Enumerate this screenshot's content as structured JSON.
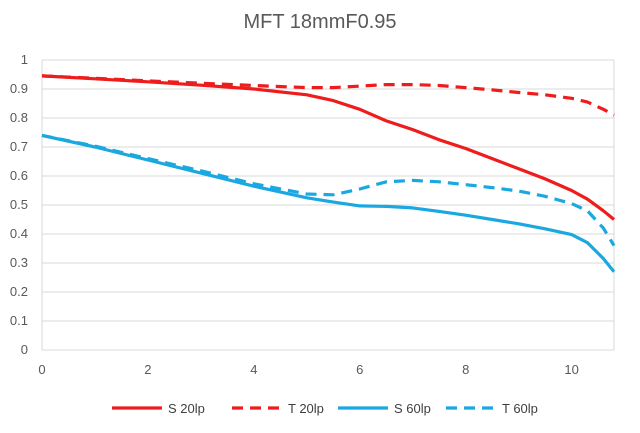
{
  "chart_data": {
    "type": "line",
    "title": "MFT 18mmF0.95",
    "xlabel": "",
    "ylabel": "",
    "xlim": [
      0,
      10.8
    ],
    "ylim": [
      0,
      1
    ],
    "x_ticks": [
      0,
      2,
      4,
      6,
      8,
      10
    ],
    "x_tick_labels": [
      "0",
      "2",
      "4",
      "6",
      "8",
      "10"
    ],
    "y_ticks": [
      0,
      0.1,
      0.2,
      0.3,
      0.4,
      0.5,
      0.6,
      0.7,
      0.8,
      0.9,
      1
    ],
    "y_tick_labels": [
      "0",
      "0.1",
      "0.2",
      "0.3",
      "0.4",
      "0.5",
      "0.6",
      "0.7",
      "0.8",
      "0.9",
      "1"
    ],
    "grid": "horizontal",
    "legend_position": "bottom",
    "colors": {
      "red": "#ee1c1c",
      "blue": "#1ba8e0",
      "grid": "#d9d9d9",
      "text": "#595959"
    },
    "series": [
      {
        "name": "S 20lp",
        "color": "#ee1c1c",
        "style": "solid",
        "x": [
          0,
          1,
          2,
          3,
          4,
          5,
          5.5,
          6,
          6.5,
          7,
          7.5,
          8,
          8.5,
          9,
          9.5,
          10,
          10.3,
          10.6,
          10.8
        ],
        "y": [
          0.945,
          0.935,
          0.925,
          0.913,
          0.9,
          0.88,
          0.86,
          0.83,
          0.79,
          0.76,
          0.725,
          0.695,
          0.66,
          0.625,
          0.59,
          0.55,
          0.52,
          0.48,
          0.45
        ]
      },
      {
        "name": "T 20lp",
        "color": "#ee1c1c",
        "style": "dashed",
        "x": [
          0,
          1,
          2,
          3,
          4,
          5,
          5.5,
          6,
          6.5,
          7,
          7.5,
          8,
          8.5,
          9,
          9.5,
          10,
          10.3,
          10.6,
          10.8
        ],
        "y": [
          0.945,
          0.937,
          0.928,
          0.92,
          0.912,
          0.905,
          0.905,
          0.91,
          0.915,
          0.915,
          0.912,
          0.905,
          0.897,
          0.888,
          0.88,
          0.868,
          0.855,
          0.83,
          0.81
        ]
      },
      {
        "name": "S 60lp",
        "color": "#1ba8e0",
        "style": "solid",
        "x": [
          0,
          1,
          2,
          3,
          4,
          5,
          5.5,
          6,
          6.5,
          7,
          7.5,
          8,
          8.5,
          9,
          9.5,
          10,
          10.3,
          10.6,
          10.8
        ],
        "y": [
          0.74,
          0.7,
          0.655,
          0.61,
          0.565,
          0.525,
          0.51,
          0.497,
          0.495,
          0.49,
          0.478,
          0.465,
          0.45,
          0.435,
          0.418,
          0.398,
          0.37,
          0.315,
          0.27
        ]
      },
      {
        "name": "T 60lp",
        "color": "#1ba8e0",
        "style": "dashed",
        "x": [
          0,
          1,
          2,
          3,
          4,
          5,
          5.5,
          6,
          6.5,
          7,
          7.5,
          8,
          8.5,
          9,
          9.5,
          10,
          10.3,
          10.6,
          10.8
        ],
        "y": [
          0.74,
          0.703,
          0.66,
          0.618,
          0.573,
          0.538,
          0.535,
          0.555,
          0.58,
          0.585,
          0.58,
          0.57,
          0.56,
          0.548,
          0.53,
          0.505,
          0.48,
          0.42,
          0.36
        ]
      }
    ]
  }
}
